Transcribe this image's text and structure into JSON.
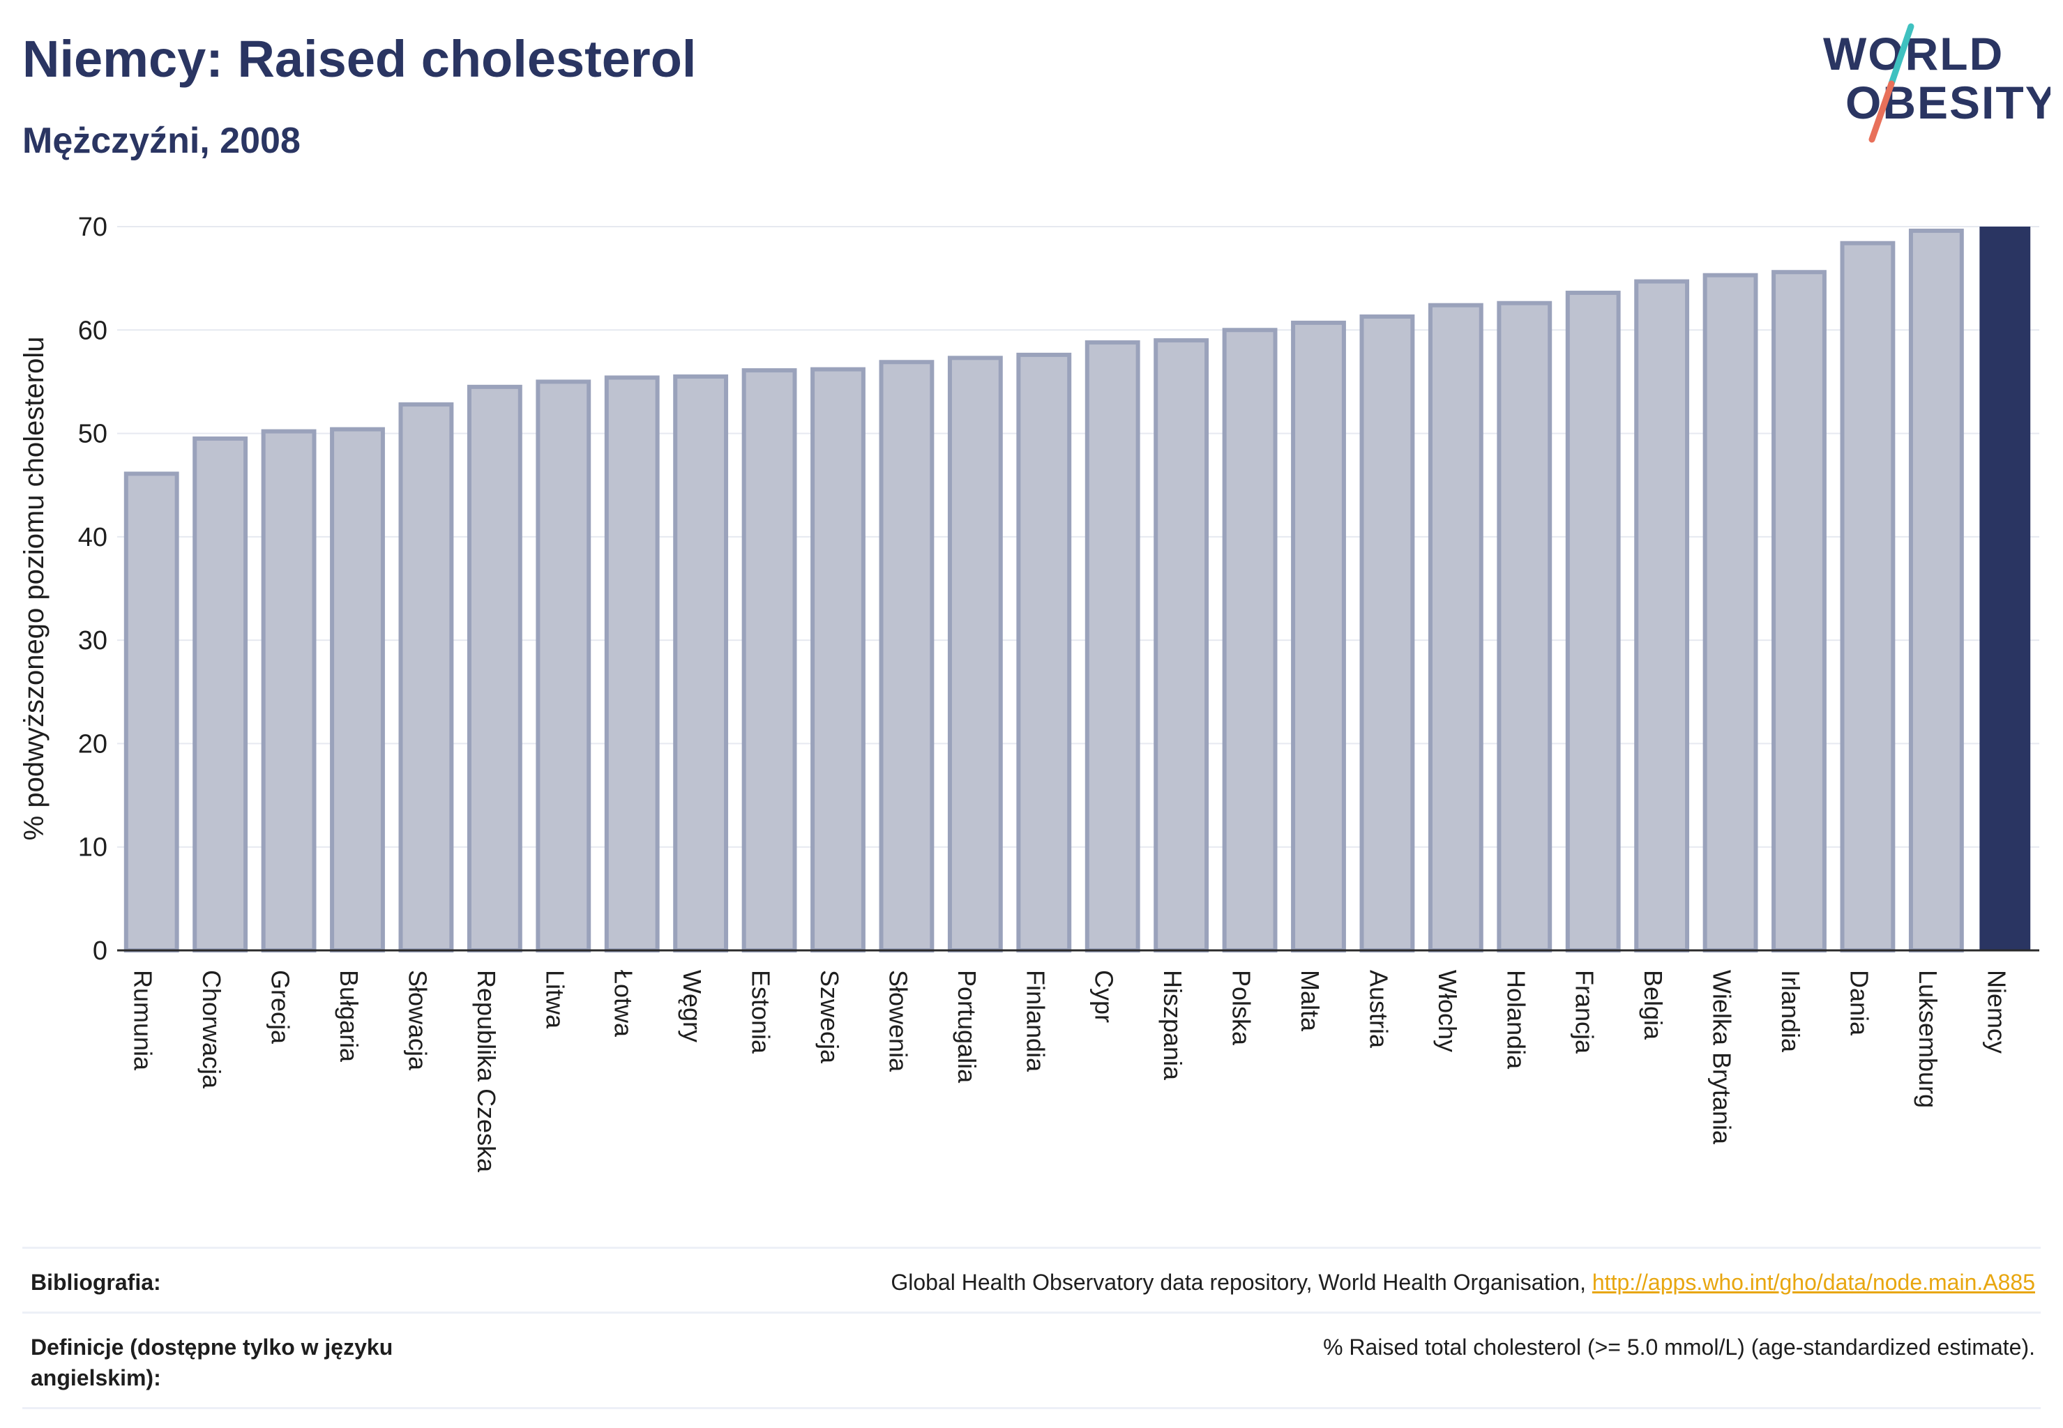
{
  "header": {
    "title": "Niemcy: Raised cholesterol",
    "subtitle": "Mężczyźni, 2008"
  },
  "logo": {
    "line1": "WORLD",
    "line2": "OBESITY",
    "colors": {
      "text": "#2a3562",
      "slash_top": "#3fc1c0",
      "slash_bottom": "#e8705a"
    }
  },
  "colors": {
    "bar_fill": "#bec2d0",
    "bar_stroke": "#9aa2bb",
    "highlight": "#2a3562",
    "grid": "#e6e9f0",
    "axis": "#2b2b2b"
  },
  "chart_data": {
    "type": "bar",
    "title": "Niemcy: Raised cholesterol",
    "subtitle": "Mężczyźni, 2008",
    "xlabel": "",
    "ylabel": "% podwyższonego poziomu cholesterolu",
    "ylim": [
      0,
      70
    ],
    "yticks": [
      0,
      10,
      20,
      30,
      40,
      50,
      60,
      70
    ],
    "grid": true,
    "highlight": "Niemcy",
    "categories": [
      "Rumunia",
      "Chorwacja",
      "Grecja",
      "Bułgaria",
      "Słowacja",
      "Republika Czeska",
      "Litwa",
      "Łotwa",
      "Węgry",
      "Estonia",
      "Szwecja",
      "Słowenia",
      "Portugalia",
      "Finlandia",
      "Cypr",
      "Hiszpania",
      "Polska",
      "Malta",
      "Austria",
      "Włochy",
      "Holandia",
      "Francja",
      "Belgia",
      "Wielka Brytania",
      "Irlandia",
      "Dania",
      "Luksemburg",
      "Niemcy"
    ],
    "values": [
      46.1,
      49.5,
      50.2,
      50.4,
      52.8,
      54.5,
      55.0,
      55.4,
      55.5,
      56.1,
      56.2,
      56.9,
      57.3,
      57.6,
      58.8,
      59.0,
      60.0,
      60.7,
      61.3,
      62.4,
      62.6,
      63.6,
      64.7,
      65.3,
      65.6,
      68.4,
      69.6,
      70.0
    ]
  },
  "references": [
    {
      "label": "Bibliografia:",
      "text": "Global Health Observatory data repository, World Health Organisation, ",
      "link": "http://apps.who.int/gho/data/node.main.A885"
    },
    {
      "label": "Definicje (dostępne tylko w języku angielskim):",
      "text": "% Raised total cholesterol (>= 5.0 mmol/L) (age-standardized estimate).",
      "link": ""
    }
  ]
}
